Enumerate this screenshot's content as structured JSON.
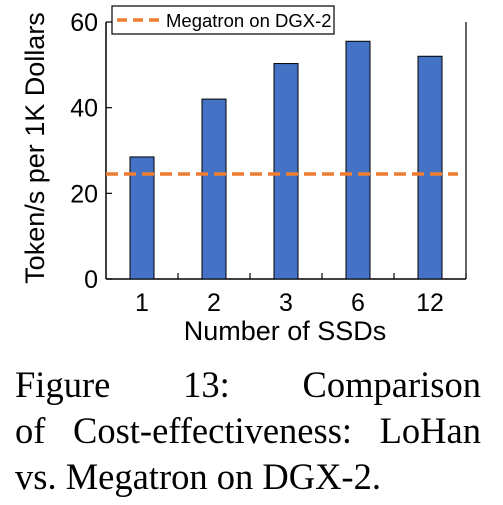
{
  "chart_data": {
    "type": "bar",
    "categories": [
      "1",
      "2",
      "3",
      "6",
      "12"
    ],
    "series": [
      {
        "values": [
          28.5,
          42,
          50.3,
          55.5,
          52
        ]
      }
    ],
    "reference_line": {
      "name": "Megatron on DGX-2",
      "value": 24.5,
      "color": "#ED7D31",
      "style": "dashed"
    },
    "xlabel": "Number of SSDs",
    "ylabel": "Token/s per 1K Dollars",
    "ylim": [
      0,
      60
    ],
    "yticks": [
      0,
      20,
      40,
      60
    ],
    "grid": false,
    "legend": "top-left",
    "bar_color": "#4472C4"
  },
  "caption": {
    "lines": [
      "Figure 13: Comparison",
      "of Cost-effectiveness: LoHan",
      "vs. Megatron on DGX-2."
    ]
  }
}
